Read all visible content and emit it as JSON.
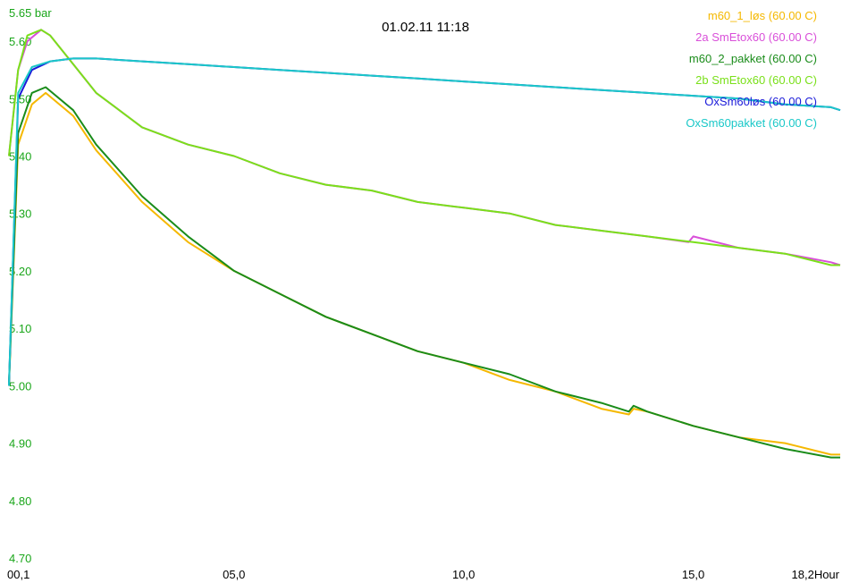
{
  "chart_data": {
    "type": "line",
    "title": "01.02.11 11:18",
    "ylabel_unit": "bar",
    "xlabel_unit": "Hour",
    "xlim": [
      0.1,
      18.2
    ],
    "ylim": [
      4.7,
      5.65
    ],
    "y_ticks": [
      "5.65",
      "5.60",
      "5.50",
      "5.40",
      "5.30",
      "5.20",
      "5.10",
      "5.00",
      "4.90",
      "4.80",
      "4.70"
    ],
    "x_ticks": [
      "00,1",
      "05,0",
      "10,0",
      "15,0",
      "18,2"
    ],
    "grid": false,
    "legend_position": "top-right",
    "series": [
      {
        "name": "m60_1_løs (60.00 C)",
        "color": "#f5b800",
        "x": [
          0.1,
          0.3,
          0.6,
          0.9,
          1.5,
          2.0,
          3.0,
          4.0,
          5.0,
          6.0,
          7.0,
          8.0,
          9.0,
          10.0,
          11.0,
          12.0,
          13.0,
          13.6,
          13.7,
          14.0,
          15.0,
          16.0,
          17.0,
          18.0,
          18.2
        ],
        "y": [
          5.0,
          5.42,
          5.49,
          5.51,
          5.47,
          5.41,
          5.32,
          5.25,
          5.2,
          5.16,
          5.12,
          5.09,
          5.06,
          5.04,
          5.01,
          4.99,
          4.96,
          4.95,
          4.96,
          4.955,
          4.93,
          4.91,
          4.9,
          4.88,
          4.88
        ]
      },
      {
        "name": "2a SmEtox60 (60.00 C)",
        "color": "#d94fd9",
        "x": [
          0.1,
          0.3,
          0.5,
          0.8,
          1.0,
          1.5,
          2.0,
          3.0,
          4.0,
          5.0,
          6.0,
          7.0,
          8.0,
          9.0,
          10.0,
          11.0,
          12.0,
          13.0,
          14.0,
          14.9,
          15.0,
          16.0,
          17.0,
          18.0,
          18.2
        ],
        "y": [
          5.4,
          5.55,
          5.6,
          5.62,
          5.61,
          5.56,
          5.51,
          5.45,
          5.42,
          5.4,
          5.37,
          5.35,
          5.34,
          5.32,
          5.31,
          5.3,
          5.28,
          5.27,
          5.26,
          5.25,
          5.26,
          5.24,
          5.23,
          5.215,
          5.21
        ]
      },
      {
        "name": "m60_2_pakket (60.00 C)",
        "color": "#1a8c1a",
        "x": [
          0.1,
          0.3,
          0.6,
          0.9,
          1.5,
          2.0,
          3.0,
          4.0,
          5.0,
          6.0,
          7.0,
          8.0,
          9.0,
          10.0,
          11.0,
          12.0,
          13.0,
          13.6,
          13.7,
          14.0,
          15.0,
          16.0,
          17.0,
          18.0,
          18.2
        ],
        "y": [
          5.0,
          5.44,
          5.51,
          5.52,
          5.48,
          5.42,
          5.33,
          5.26,
          5.2,
          5.16,
          5.12,
          5.09,
          5.06,
          5.04,
          5.02,
          4.99,
          4.97,
          4.955,
          4.965,
          4.955,
          4.93,
          4.91,
          4.89,
          4.875,
          4.875
        ]
      },
      {
        "name": "2b SmEtox60 (60.00 C)",
        "color": "#7ae01a",
        "x": [
          0.1,
          0.3,
          0.5,
          0.8,
          1.0,
          1.5,
          2.0,
          3.0,
          4.0,
          5.0,
          6.0,
          7.0,
          8.0,
          9.0,
          10.0,
          11.0,
          12.0,
          13.0,
          14.0,
          15.0,
          16.0,
          17.0,
          18.0,
          18.2
        ],
        "y": [
          5.4,
          5.55,
          5.61,
          5.62,
          5.61,
          5.56,
          5.51,
          5.45,
          5.42,
          5.4,
          5.37,
          5.35,
          5.34,
          5.32,
          5.31,
          5.3,
          5.28,
          5.27,
          5.26,
          5.25,
          5.24,
          5.23,
          5.21,
          5.21
        ]
      },
      {
        "name": "OxSm60løs (60.00 C)",
        "color": "#1a1ad9",
        "x": [
          0.1,
          0.3,
          0.6,
          1.0,
          1.5,
          2.0,
          3.0,
          4.0,
          5.0,
          6.0,
          7.0,
          8.0,
          9.0,
          10.0,
          11.0,
          12.0,
          13.0,
          14.0,
          15.0,
          16.0,
          17.0,
          18.0,
          18.2
        ],
        "y": [
          5.0,
          5.5,
          5.55,
          5.565,
          5.57,
          5.57,
          5.565,
          5.56,
          5.555,
          5.55,
          5.545,
          5.54,
          5.535,
          5.53,
          5.525,
          5.52,
          5.515,
          5.51,
          5.505,
          5.5,
          5.49,
          5.485,
          5.48
        ]
      },
      {
        "name": "OxSm60pakket (60.00 C)",
        "color": "#1ac8c8",
        "x": [
          0.1,
          0.3,
          0.6,
          1.0,
          1.5,
          2.0,
          3.0,
          4.0,
          5.0,
          6.0,
          7.0,
          8.0,
          9.0,
          10.0,
          11.0,
          12.0,
          13.0,
          14.0,
          15.0,
          16.0,
          17.0,
          18.0,
          18.2
        ],
        "y": [
          5.0,
          5.51,
          5.555,
          5.565,
          5.57,
          5.57,
          5.565,
          5.56,
          5.555,
          5.55,
          5.545,
          5.54,
          5.535,
          5.53,
          5.525,
          5.52,
          5.515,
          5.51,
          5.505,
          5.5,
          5.49,
          5.485,
          5.48
        ]
      }
    ]
  }
}
